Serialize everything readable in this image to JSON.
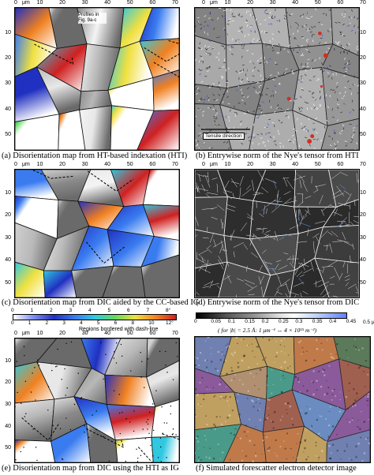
{
  "panels": [
    {
      "id": "a",
      "caption": "(a)  Disorientation map from HT-based indexation (HTI)",
      "annotation": "Profiles in Fig. 9a-c"
    },
    {
      "id": "b",
      "caption": "(b)  Entrywise norm of the Nye's tensor from HTI",
      "annotation": "Tensile direction"
    },
    {
      "id": "c",
      "caption": "(c)  Disorientation map from DIC aided by the CC-based IG"
    },
    {
      "id": "d",
      "caption": "(d)  Entrywise norm of the Nye's tensor from DIC"
    },
    {
      "id": "e",
      "caption": "(e)  Disorientation map from DIC using the HTI as IG"
    },
    {
      "id": "f",
      "caption": "(f)  Simulated forescatter electron detector image"
    }
  ],
  "axis": {
    "x_unit": "μm",
    "x_ticks": [
      "0",
      "10",
      "20",
      "30",
      "40",
      "50",
      "60",
      "70"
    ],
    "y_ticks": [
      "10",
      "20",
      "30",
      "40",
      "50"
    ]
  },
  "colorbars": {
    "disorientation_top": {
      "labels": [
        "0",
        "1",
        "2",
        "3",
        "4",
        "5",
        "6",
        "7",
        "8°"
      ]
    },
    "disorientation_bottom": {
      "labels": [
        "0",
        "1",
        "2",
        "3",
        "4",
        "5",
        "6",
        "8",
        "10",
        "12°"
      ]
    },
    "region_note": "Regions bordered with dash-line",
    "nye": {
      "labels": [
        "0",
        "0.05",
        "0.1",
        "0.15",
        "0.2",
        "0.25",
        "0.3",
        "0.35",
        "0.4",
        "0.45",
        "0.5 μm⁻¹"
      ]
    },
    "nye_note": "( for |b| = 2.5 Å: 1 μm⁻¹ ↔ 4 × 10¹⁵ m⁻²)"
  },
  "colors": {
    "disorientation": [
      "#2030c0",
      "#3a7cf0",
      "#30c8e0",
      "#60d860",
      "#f0e040",
      "#f08020",
      "#d02020"
    ],
    "nye": [
      "#000000",
      "#444444",
      "#888888",
      "#cccccc",
      "#ffffff",
      "#c0d8ff",
      "#6080ff"
    ]
  }
}
